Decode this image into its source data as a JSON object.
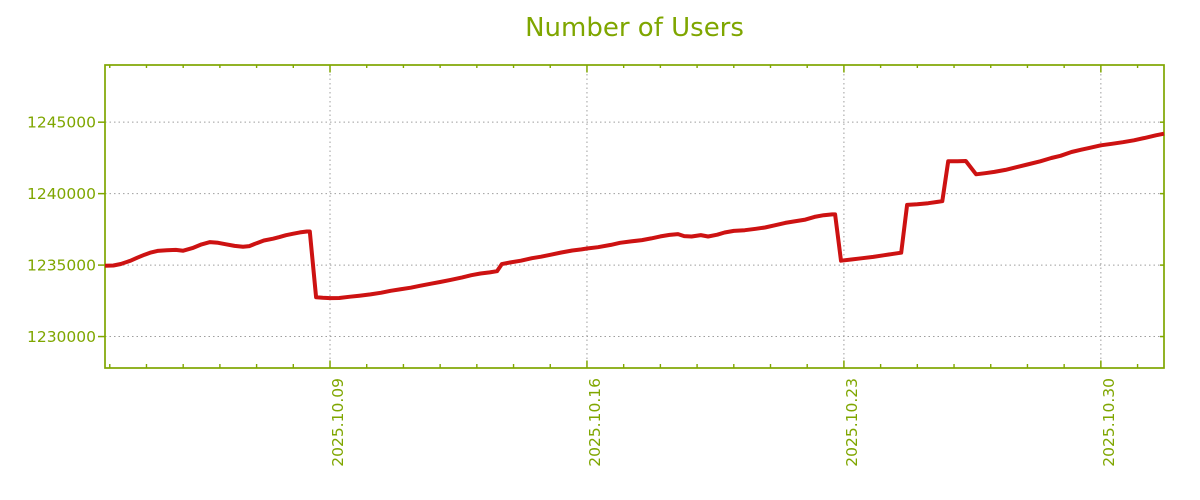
{
  "colors": {
    "accent_green": "#7fa600",
    "line_red": "#cd1212",
    "grid_gray": "#9e9e9e",
    "background": "#ffffff"
  },
  "chart_data": {
    "type": "line",
    "title": "Number of Users",
    "legend": {
      "shown": false
    },
    "grid": {
      "shown": true,
      "style": "dotted",
      "color": "#9e9e9e"
    },
    "x_axis": {
      "unit": "day of October 2025",
      "range_days": [
        2.87,
        31.72
      ],
      "major_ticks": [
        {
          "day": 9,
          "label": "2025.10.09"
        },
        {
          "day": 16,
          "label": "2025.10.16"
        },
        {
          "day": 23,
          "label": "2025.10.23"
        },
        {
          "day": 30,
          "label": "2025.10.30"
        }
      ],
      "minor_tick_days": [
        3,
        4,
        5,
        6,
        7,
        8,
        10,
        11,
        12,
        13,
        14,
        15,
        17,
        18,
        19,
        20,
        21,
        22,
        24,
        25,
        26,
        27,
        28,
        29,
        31
      ]
    },
    "y_axis": {
      "range": [
        1227800,
        1249000
      ],
      "ticks": [
        {
          "value": 1230000,
          "label": "1230000"
        },
        {
          "value": 1235000,
          "label": "1235000"
        },
        {
          "value": 1240000,
          "label": "1240000"
        },
        {
          "value": 1245000,
          "label": "1245000"
        }
      ]
    },
    "series": [
      {
        "name": "Number of Users",
        "color": "#cd1212",
        "points": [
          [
            2.87,
            1234950
          ],
          [
            3.1,
            1234970
          ],
          [
            3.3,
            1235080
          ],
          [
            3.55,
            1235290
          ],
          [
            3.75,
            1235520
          ],
          [
            3.95,
            1235730
          ],
          [
            4.1,
            1235870
          ],
          [
            4.3,
            1235990
          ],
          [
            4.55,
            1236040
          ],
          [
            4.8,
            1236060
          ],
          [
            5.0,
            1236010
          ],
          [
            5.25,
            1236190
          ],
          [
            5.5,
            1236450
          ],
          [
            5.73,
            1236610
          ],
          [
            5.95,
            1236560
          ],
          [
            6.15,
            1236460
          ],
          [
            6.4,
            1236340
          ],
          [
            6.63,
            1236280
          ],
          [
            6.8,
            1236330
          ],
          [
            7.0,
            1236530
          ],
          [
            7.2,
            1236720
          ],
          [
            7.45,
            1236850
          ],
          [
            7.62,
            1236960
          ],
          [
            7.8,
            1237090
          ],
          [
            8.0,
            1237200
          ],
          [
            8.18,
            1237290
          ],
          [
            8.37,
            1237350
          ],
          [
            8.45,
            1237350
          ],
          [
            8.62,
            1232750
          ],
          [
            8.8,
            1232710
          ],
          [
            9.0,
            1232690
          ],
          [
            9.25,
            1232700
          ],
          [
            9.55,
            1232790
          ],
          [
            9.8,
            1232860
          ],
          [
            10.1,
            1232950
          ],
          [
            10.4,
            1233070
          ],
          [
            10.65,
            1233200
          ],
          [
            10.9,
            1233300
          ],
          [
            11.2,
            1233420
          ],
          [
            11.45,
            1233550
          ],
          [
            11.75,
            1233700
          ],
          [
            12.0,
            1233820
          ],
          [
            12.3,
            1233970
          ],
          [
            12.6,
            1234140
          ],
          [
            12.85,
            1234290
          ],
          [
            13.1,
            1234410
          ],
          [
            13.35,
            1234490
          ],
          [
            13.55,
            1234570
          ],
          [
            13.68,
            1235070
          ],
          [
            13.9,
            1235180
          ],
          [
            14.2,
            1235310
          ],
          [
            14.5,
            1235480
          ],
          [
            14.75,
            1235590
          ],
          [
            15.0,
            1235720
          ],
          [
            15.3,
            1235880
          ],
          [
            15.6,
            1236020
          ],
          [
            15.85,
            1236100
          ],
          [
            16.0,
            1236160
          ],
          [
            16.3,
            1236250
          ],
          [
            16.65,
            1236410
          ],
          [
            16.9,
            1236560
          ],
          [
            17.2,
            1236660
          ],
          [
            17.5,
            1236750
          ],
          [
            17.75,
            1236870
          ],
          [
            18.0,
            1237010
          ],
          [
            18.25,
            1237110
          ],
          [
            18.48,
            1237170
          ],
          [
            18.65,
            1237030
          ],
          [
            18.85,
            1237000
          ],
          [
            19.1,
            1237100
          ],
          [
            19.3,
            1237000
          ],
          [
            19.55,
            1237130
          ],
          [
            19.75,
            1237280
          ],
          [
            20.0,
            1237390
          ],
          [
            20.3,
            1237440
          ],
          [
            20.6,
            1237540
          ],
          [
            20.85,
            1237630
          ],
          [
            21.1,
            1237780
          ],
          [
            21.4,
            1237950
          ],
          [
            21.65,
            1238060
          ],
          [
            21.95,
            1238180
          ],
          [
            22.2,
            1238370
          ],
          [
            22.45,
            1238490
          ],
          [
            22.68,
            1238550
          ],
          [
            22.76,
            1238550
          ],
          [
            22.92,
            1235310
          ],
          [
            23.2,
            1235390
          ],
          [
            23.5,
            1235480
          ],
          [
            23.8,
            1235570
          ],
          [
            24.1,
            1235690
          ],
          [
            24.35,
            1235790
          ],
          [
            24.56,
            1235870
          ],
          [
            24.72,
            1239210
          ],
          [
            25.0,
            1239260
          ],
          [
            25.3,
            1239330
          ],
          [
            25.55,
            1239420
          ],
          [
            25.68,
            1239470
          ],
          [
            25.84,
            1242260
          ],
          [
            26.1,
            1242270
          ],
          [
            26.32,
            1242280
          ],
          [
            26.6,
            1241350
          ],
          [
            26.85,
            1241430
          ],
          [
            27.1,
            1241520
          ],
          [
            27.4,
            1241660
          ],
          [
            27.7,
            1241850
          ],
          [
            28.0,
            1242040
          ],
          [
            28.35,
            1242260
          ],
          [
            28.65,
            1242490
          ],
          [
            28.9,
            1242650
          ],
          [
            29.2,
            1242910
          ],
          [
            29.45,
            1243070
          ],
          [
            29.7,
            1243210
          ],
          [
            30.0,
            1243380
          ],
          [
            30.3,
            1243490
          ],
          [
            30.6,
            1243600
          ],
          [
            30.9,
            1243730
          ],
          [
            31.2,
            1243900
          ],
          [
            31.5,
            1244080
          ],
          [
            31.72,
            1244190
          ]
        ]
      }
    ]
  }
}
